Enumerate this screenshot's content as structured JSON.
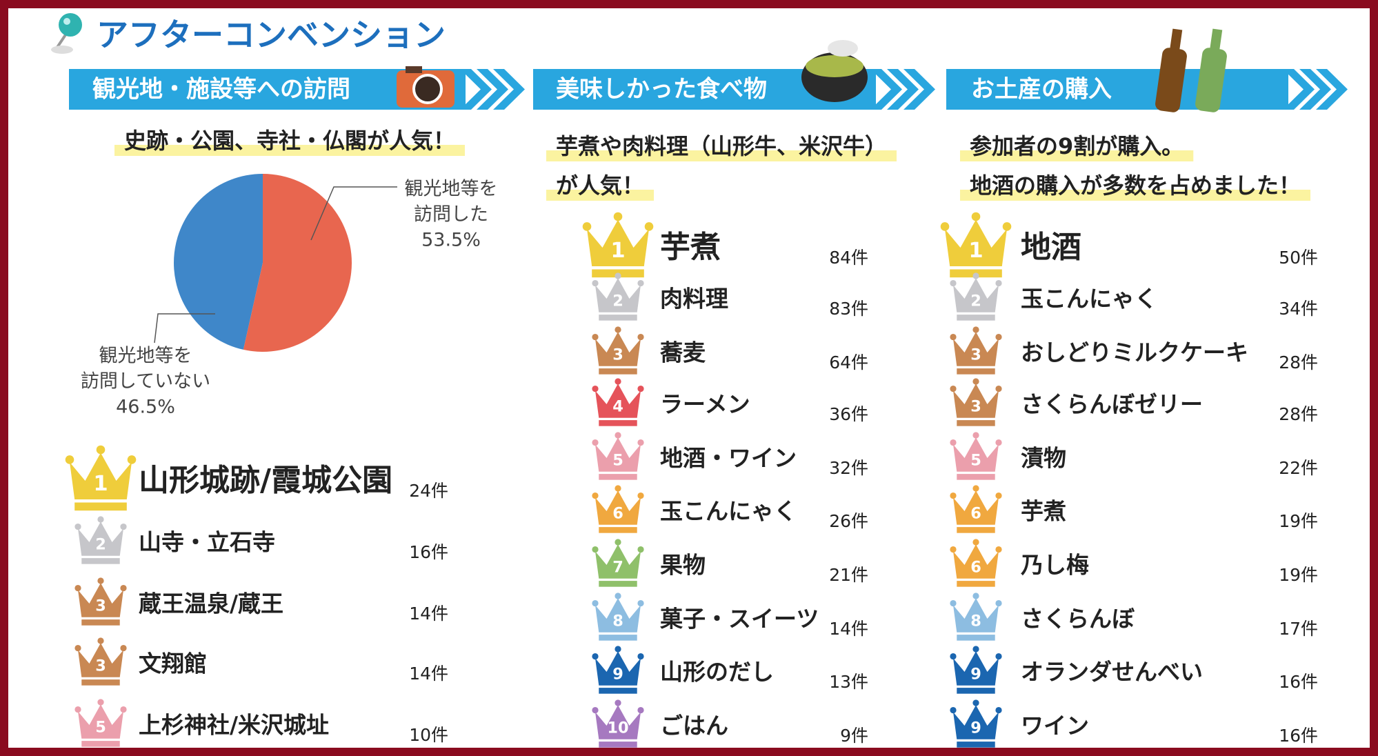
{
  "title": "アフターコンベンション",
  "sections": [
    {
      "heading": "観光地・施設等への訪問",
      "subtitle": [
        "史跡・公園、寺社・仏閣が人気！"
      ],
      "pie": {
        "type": "pie",
        "categories": [
          [
            "観光地等を",
            "訪問していない"
          ],
          [
            "観光地等を",
            "訪問した"
          ]
        ],
        "values": [
          46.5,
          53.5
        ],
        "value_labels": [
          "46.5%",
          "53.5%"
        ],
        "colors": [
          "#3f87c9",
          "#e8664f"
        ]
      },
      "ranking": [
        {
          "rank": 1,
          "name": "山形城跡/霞城公園",
          "count": "24件",
          "color": "#efcd3b"
        },
        {
          "rank": 2,
          "name": "山寺・立石寺",
          "count": "16件",
          "color": "#c6c6ca"
        },
        {
          "rank": 3,
          "name": "蔵王温泉/蔵王",
          "count": "14件",
          "color": "#c98853"
        },
        {
          "rank": 3,
          "name": "文翔館",
          "count": "14件",
          "color": "#c98853"
        },
        {
          "rank": 5,
          "name": "上杉神社/米沢城址",
          "count": "10件",
          "color": "#eb9fac"
        }
      ]
    },
    {
      "heading": "美味しかった食べ物",
      "subtitle": [
        "芋煮や肉料理（山形牛、米沢牛）",
        "が人気！"
      ],
      "ranking": [
        {
          "rank": 1,
          "name": "芋煮",
          "count": "84件",
          "color": "#efcd3b"
        },
        {
          "rank": 2,
          "name": "肉料理",
          "count": "83件",
          "color": "#c6c6ca"
        },
        {
          "rank": 3,
          "name": "蕎麦",
          "count": "64件",
          "color": "#c98853"
        },
        {
          "rank": 4,
          "name": "ラーメン",
          "count": "36件",
          "color": "#e5535a"
        },
        {
          "rank": 5,
          "name": "地酒・ワイン",
          "count": "32件",
          "color": "#eb9fac"
        },
        {
          "rank": 6,
          "name": "玉こんにゃく",
          "count": "26件",
          "color": "#f0a83f"
        },
        {
          "rank": 7,
          "name": "果物",
          "count": "21件",
          "color": "#8fc06a"
        },
        {
          "rank": 8,
          "name": "菓子・スイーツ",
          "count": "14件",
          "color": "#8dbde1"
        },
        {
          "rank": 9,
          "name": "山形のだし",
          "count": "13件",
          "color": "#1b66b0"
        },
        {
          "rank": 10,
          "name": "ごはん",
          "count": "9件",
          "color": "#a679c0"
        }
      ]
    },
    {
      "heading": "お土産の購入",
      "subtitle": [
        "参加者の9割が購入。",
        "地酒の購入が多数を占めました！"
      ],
      "ranking": [
        {
          "rank": 1,
          "name": "地酒",
          "count": "50件",
          "color": "#efcd3b"
        },
        {
          "rank": 2,
          "name": "玉こんにゃく",
          "count": "34件",
          "color": "#c6c6ca"
        },
        {
          "rank": 3,
          "name": "おしどりミルクケーキ",
          "count": "28件",
          "color": "#c98853"
        },
        {
          "rank": 3,
          "name": "さくらんぼゼリー",
          "count": "28件",
          "color": "#c98853"
        },
        {
          "rank": 5,
          "name": "漬物",
          "count": "22件",
          "color": "#eb9fac"
        },
        {
          "rank": 6,
          "name": "芋煮",
          "count": "19件",
          "color": "#f0a83f"
        },
        {
          "rank": 6,
          "name": "乃し梅",
          "count": "19件",
          "color": "#f0a83f"
        },
        {
          "rank": 8,
          "name": "さくらんぼ",
          "count": "17件",
          "color": "#8dbde1"
        },
        {
          "rank": 9,
          "name": "オランダせんべい",
          "count": "16件",
          "color": "#1b66b0"
        },
        {
          "rank": 9,
          "name": "ワイン",
          "count": "16件",
          "color": "#1b66b0"
        }
      ]
    }
  ]
}
